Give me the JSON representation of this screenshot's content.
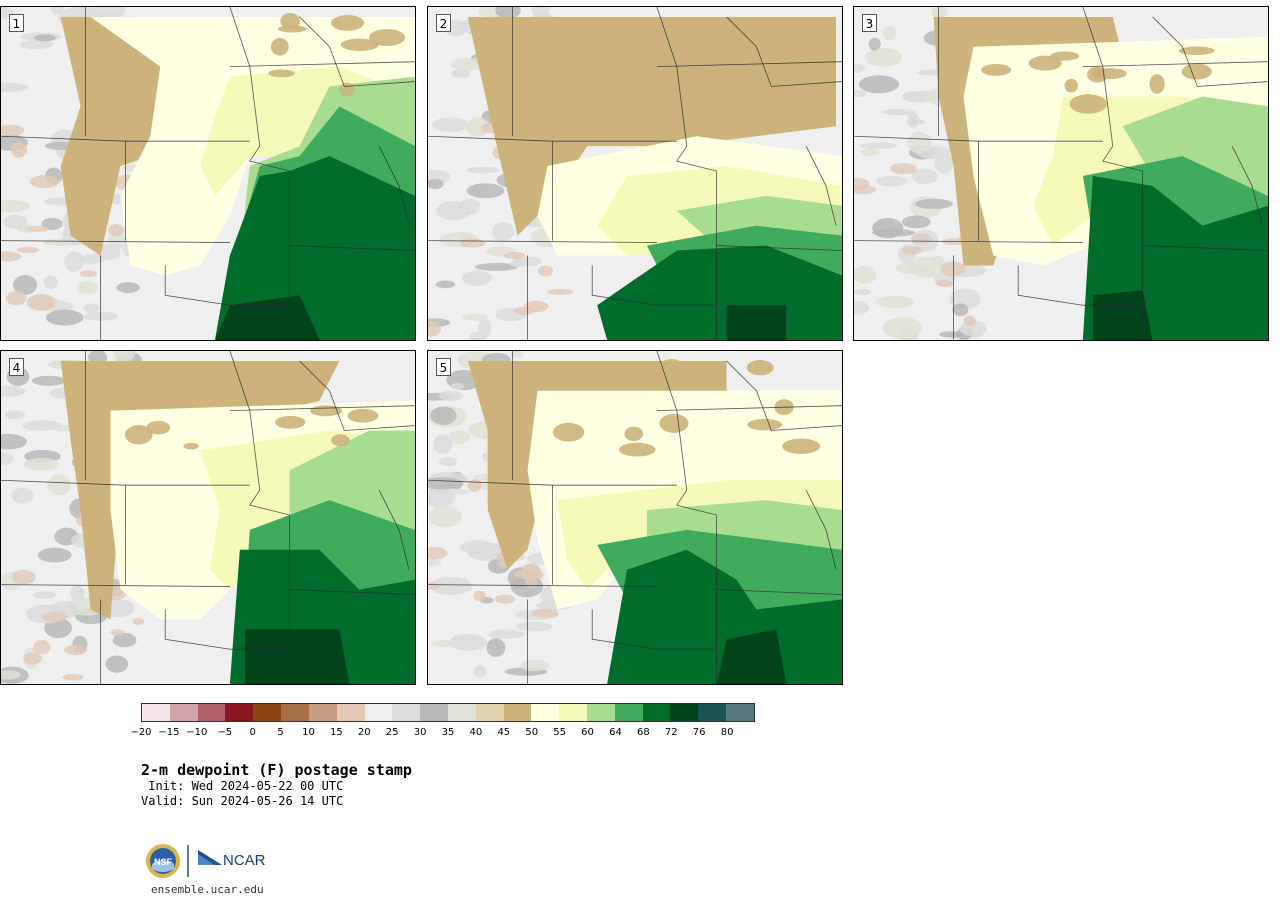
{
  "panels": [
    {
      "label": "1",
      "scenario": "west"
    },
    {
      "label": "2",
      "scenario": "south"
    },
    {
      "label": "3",
      "scenario": "east"
    },
    {
      "label": "4",
      "scenario": "mid"
    },
    {
      "label": "5",
      "scenario": "swirl"
    }
  ],
  "colorbar": {
    "colors": [
      "#f4e6e8",
      "#d4a4ab",
      "#b06068",
      "#8a1622",
      "#8a4512",
      "#a87048",
      "#c69c84",
      "#e2c9b8",
      "#efefef",
      "#dcdcdc",
      "#b8b8b8",
      "#e1e1d6",
      "#e3d4b0",
      "#ccb37a",
      "#ffffe4",
      "#f5f9b8",
      "#a8dd90",
      "#41ab5d",
      "#006d2c",
      "#00441b",
      "#1a5256",
      "#567a7e"
    ],
    "ticks": [
      "−20",
      "−15",
      "−10",
      "−5",
      "0",
      "5",
      "10",
      "15",
      "20",
      "25",
      "30",
      "35",
      "40",
      "45",
      "50",
      "55",
      "60",
      "64",
      "68",
      "72",
      "76",
      "80"
    ]
  },
  "title": "2-m dewpoint (F) postage stamp",
  "init": " Init: Wed 2024-05-22 00 UTC",
  "valid": "Valid: Sun 2024-05-26 14 UTC",
  "logo_text": "NCAR",
  "seal_text": "NSF",
  "site": "ensemble.ucar.edu"
}
